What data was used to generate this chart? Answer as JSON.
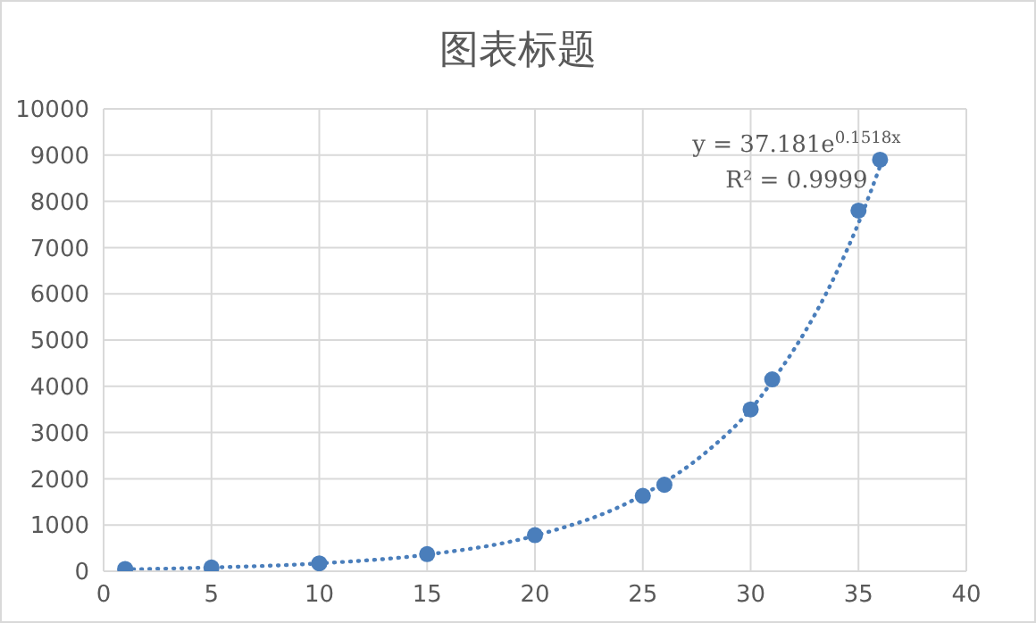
{
  "chart_data": {
    "type": "scatter",
    "title": "图表标题",
    "x": [
      1,
      5,
      10,
      15,
      20,
      25,
      26,
      30,
      31,
      35,
      36
    ],
    "series": [
      {
        "color": "#4a7ebb",
        "marker": "circle",
        "values": [
          50,
          80,
          170,
          370,
          780,
          1630,
          1870,
          3500,
          4150,
          7800,
          8900
        ]
      },
      {
        "type": "line",
        "color": "#4a7ebb",
        "marker": "none",
        "line_style": "dotted",
        "x": [
          1,
          5,
          10,
          15,
          20,
          25,
          28,
          30,
          31,
          32,
          33,
          34,
          35,
          36
        ],
        "values": [
          40,
          80,
          170,
          360,
          770,
          1650,
          2600,
          3500,
          4110,
          4790,
          5570,
          6480,
          7530,
          8760
        ]
      }
    ],
    "xlim": [
      0,
      40
    ],
    "xticks": [
      0,
      5,
      10,
      15,
      20,
      25,
      30,
      35,
      40
    ],
    "ylim": [
      0,
      10000
    ],
    "yticks": [
      0,
      1000,
      2000,
      3000,
      4000,
      5000,
      6000,
      7000,
      8000,
      9000,
      10000
    ],
    "grid": true,
    "annotations": [
      "y = 37.181e$^{0.1518x}$",
      "R² = 0.9999"
    ]
  }
}
